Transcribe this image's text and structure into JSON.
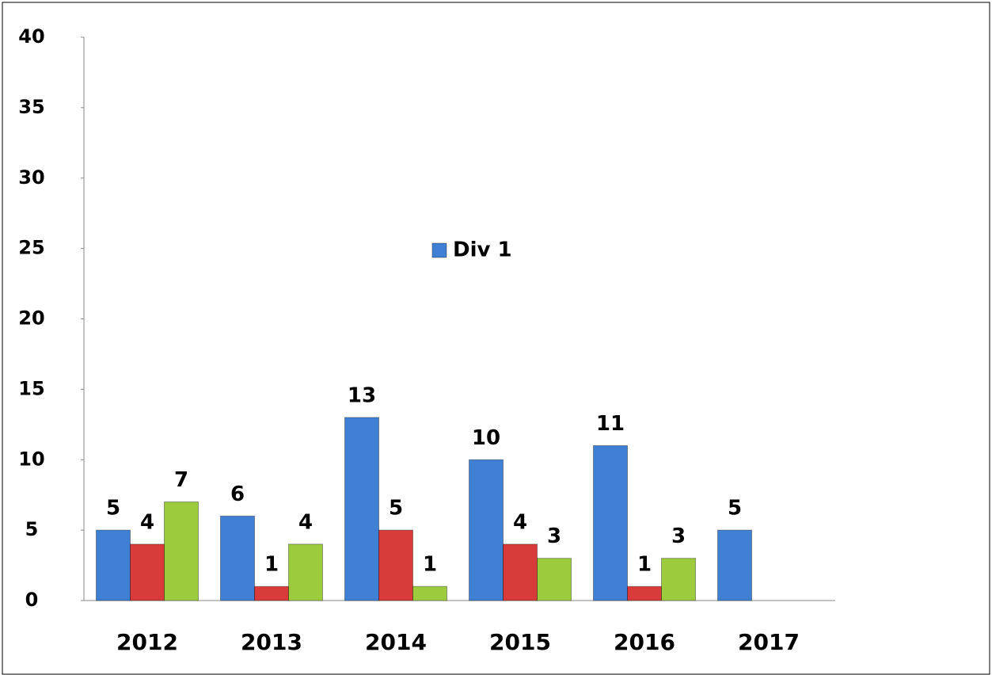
{
  "chart_data": {
    "type": "bar",
    "categories": [
      "2012",
      "2013",
      "2014",
      "2015",
      "2016",
      "2017"
    ],
    "series": [
      {
        "name": "Div 1",
        "color": "#3f7fd4",
        "values": [
          5,
          6,
          13,
          10,
          11,
          5
        ]
      },
      {
        "color": "#d93a3a",
        "values": [
          4,
          1,
          5,
          4,
          1,
          null
        ]
      },
      {
        "color": "#9ccb3e",
        "values": [
          7,
          4,
          1,
          3,
          3,
          null
        ]
      }
    ],
    "ylim": [
      0,
      40
    ],
    "yticks": [
      0,
      5,
      10,
      15,
      20,
      25,
      30,
      35,
      40
    ],
    "legend": "center"
  }
}
